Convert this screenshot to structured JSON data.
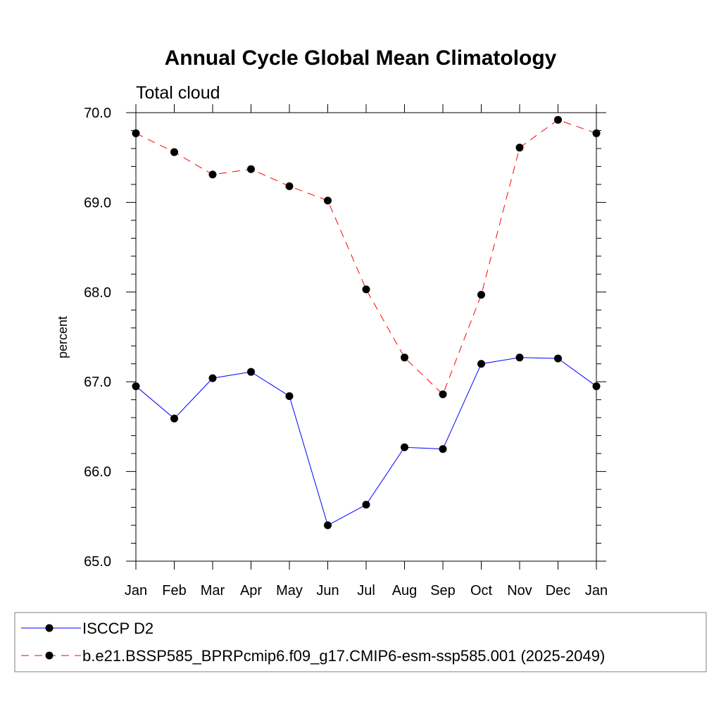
{
  "chart_data": {
    "type": "line",
    "title": "Annual Cycle Global Mean Climatology",
    "subtitle": "Total cloud",
    "xlabel": "",
    "ylabel": "percent",
    "categories": [
      "Jan",
      "Feb",
      "Mar",
      "Apr",
      "May",
      "Jun",
      "Jul",
      "Aug",
      "Sep",
      "Oct",
      "Nov",
      "Dec",
      "Jan"
    ],
    "ylim": [
      65.0,
      70.0
    ],
    "yticks": [
      "65.0",
      "66.0",
      "67.0",
      "68.0",
      "69.0",
      "70.0"
    ],
    "grid": false,
    "legend_position": "bottom",
    "series": [
      {
        "name": "ISCCP D2",
        "color": "#0000ff",
        "line_style": "solid",
        "marker": "filled-circle",
        "values": [
          66.95,
          66.59,
          67.04,
          67.11,
          66.84,
          65.4,
          65.63,
          66.27,
          66.25,
          67.2,
          67.27,
          67.26,
          66.95
        ]
      },
      {
        "name": "b.e21.BSSP585_BPRPcmip6.f09_g17.CMIP6-esm-ssp585.001 (2025-2049)",
        "color": "#ff0000",
        "line_style": "dashed",
        "marker": "filled-circle",
        "values": [
          69.77,
          69.56,
          69.31,
          69.37,
          69.18,
          69.02,
          68.03,
          67.27,
          66.86,
          67.97,
          69.61,
          69.92,
          69.77
        ]
      }
    ]
  }
}
